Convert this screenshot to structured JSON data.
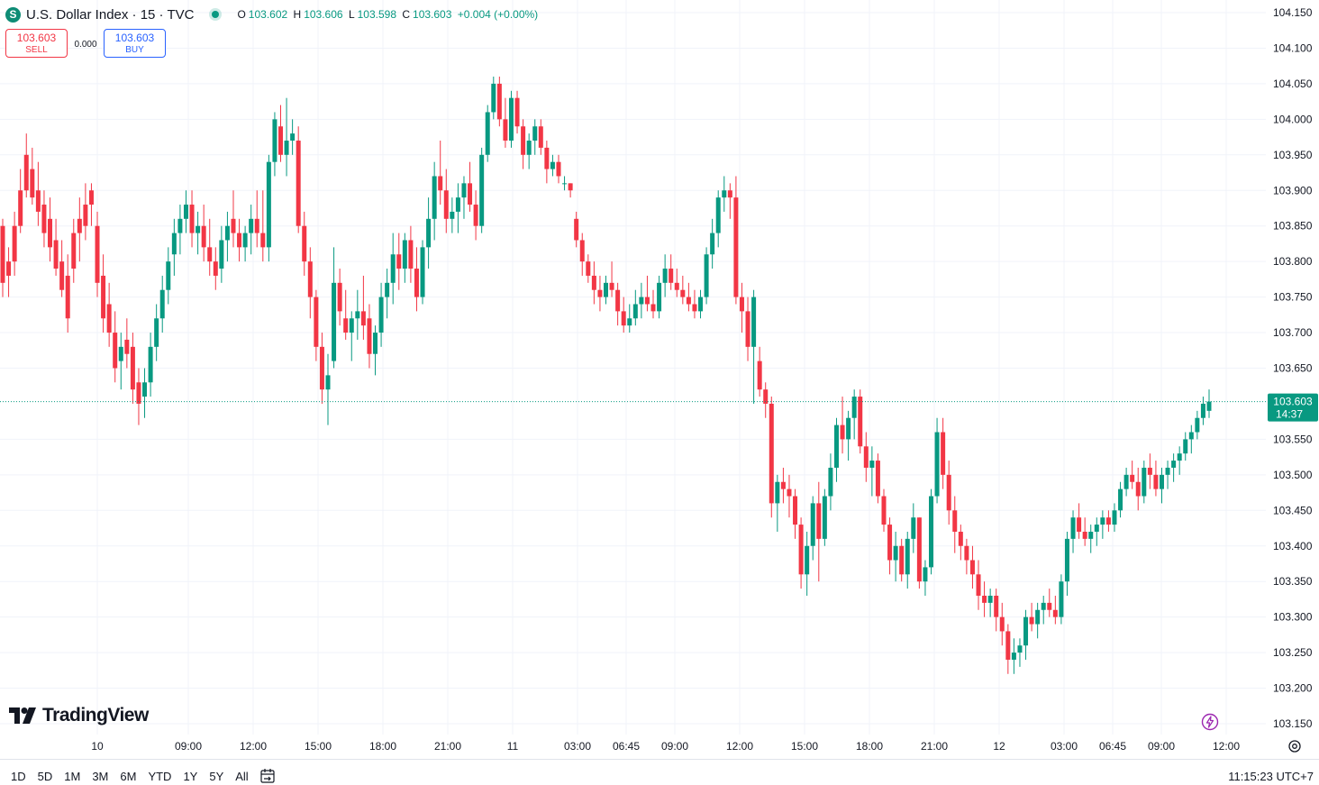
{
  "header": {
    "logo_letter": "S",
    "title": "U.S. Dollar Index · 15 · TVC",
    "ohlc": {
      "o_label": "O",
      "o": "103.602",
      "h_label": "H",
      "h": "103.606",
      "l_label": "L",
      "l": "103.598",
      "c_label": "C",
      "c": "103.603",
      "change": "+0.004 (+0.00%)"
    }
  },
  "trade": {
    "sell_price": "103.603",
    "sell_label": "SELL",
    "spread": "0.000",
    "buy_price": "103.603",
    "buy_label": "BUY"
  },
  "brand": {
    "name": "TradingView"
  },
  "price_tag": {
    "price": "103.603",
    "countdown": "14:37"
  },
  "bottom_bar": {
    "ranges": [
      "1D",
      "5D",
      "1M",
      "3M",
      "6M",
      "YTD",
      "1Y",
      "5Y",
      "All"
    ],
    "clock": "11:15:23 UTC+7"
  },
  "colors": {
    "up": "#089981",
    "down": "#f23645",
    "grid": "#f0f3fa",
    "accent": "#2962ff"
  },
  "chart_data": {
    "type": "candlestick",
    "y_ticks": [
      "104.150",
      "104.100",
      "104.050",
      "104.000",
      "103.950",
      "103.900",
      "103.850",
      "103.800",
      "103.750",
      "103.700",
      "103.650",
      "103.550",
      "103.500",
      "103.450",
      "103.400",
      "103.350",
      "103.300",
      "103.250",
      "103.200",
      "103.150"
    ],
    "ylim": [
      103.13,
      104.17
    ],
    "x_ticks": [
      "10",
      "09:00",
      "12:00",
      "15:00",
      "18:00",
      "21:00",
      "11",
      "03:00",
      "06:45",
      "09:00",
      "12:00",
      "15:00",
      "18:00",
      "21:00",
      "12",
      "03:00",
      "06:45",
      "09:00",
      "12:00"
    ],
    "last_price": 103.603,
    "candles": [
      [
        103.85,
        103.86,
        103.75,
        103.77
      ],
      [
        103.8,
        103.82,
        103.75,
        103.78
      ],
      [
        103.85,
        103.87,
        103.78,
        103.8
      ],
      [
        103.9,
        103.93,
        103.84,
        103.85
      ],
      [
        103.95,
        103.98,
        103.89,
        103.9
      ],
      [
        103.93,
        103.96,
        103.88,
        103.89
      ],
      [
        103.9,
        103.94,
        103.85,
        103.87
      ],
      [
        103.88,
        103.9,
        103.82,
        103.84
      ],
      [
        103.86,
        103.89,
        103.8,
        103.82
      ],
      [
        103.83,
        103.86,
        103.78,
        103.79
      ],
      [
        103.8,
        103.83,
        103.75,
        103.76
      ],
      [
        103.78,
        103.81,
        103.7,
        103.72
      ],
      [
        103.84,
        103.86,
        103.77,
        103.79
      ],
      [
        103.86,
        103.89,
        103.8,
        103.84
      ],
      [
        103.88,
        103.91,
        103.83,
        103.85
      ],
      [
        103.9,
        103.91,
        103.85,
        103.88
      ],
      [
        103.85,
        103.87,
        103.75,
        103.77
      ],
      [
        103.78,
        103.81,
        103.7,
        103.72
      ],
      [
        103.74,
        103.77,
        103.68,
        103.7
      ],
      [
        103.7,
        103.73,
        103.63,
        103.65
      ],
      [
        103.66,
        103.7,
        103.62,
        103.68
      ],
      [
        103.69,
        103.72,
        103.65,
        103.67
      ],
      [
        103.68,
        103.7,
        103.6,
        103.62
      ],
      [
        103.63,
        103.65,
        103.57,
        103.6
      ],
      [
        103.61,
        103.65,
        103.58,
        103.63
      ],
      [
        103.63,
        103.7,
        103.61,
        103.68
      ],
      [
        103.68,
        103.74,
        103.66,
        103.72
      ],
      [
        103.72,
        103.78,
        103.7,
        103.76
      ],
      [
        103.76,
        103.82,
        103.74,
        103.8
      ],
      [
        103.81,
        103.86,
        103.78,
        103.84
      ],
      [
        103.84,
        103.88,
        103.81,
        103.86
      ],
      [
        103.86,
        103.9,
        103.84,
        103.88
      ],
      [
        103.88,
        103.9,
        103.82,
        103.84
      ],
      [
        103.84,
        103.87,
        103.81,
        103.85
      ],
      [
        103.85,
        103.88,
        103.8,
        103.82
      ],
      [
        103.82,
        103.86,
        103.78,
        103.8
      ],
      [
        103.8,
        103.82,
        103.76,
        103.78
      ],
      [
        103.79,
        103.85,
        103.77,
        103.83
      ],
      [
        103.83,
        103.87,
        103.8,
        103.85
      ],
      [
        103.86,
        103.9,
        103.82,
        103.84
      ],
      [
        103.84,
        103.86,
        103.8,
        103.82
      ],
      [
        103.82,
        103.85,
        103.8,
        103.84
      ],
      [
        103.84,
        103.88,
        103.81,
        103.86
      ],
      [
        103.86,
        103.9,
        103.82,
        103.84
      ],
      [
        103.84,
        103.9,
        103.8,
        103.82
      ],
      [
        103.82,
        103.95,
        103.8,
        103.94
      ],
      [
        103.94,
        104.01,
        103.92,
        104.0
      ],
      [
        103.99,
        104.02,
        103.94,
        103.95
      ],
      [
        103.95,
        104.03,
        103.92,
        103.97
      ],
      [
        103.97,
        104.0,
        103.95,
        103.98
      ],
      [
        103.97,
        103.99,
        103.84,
        103.85
      ],
      [
        103.85,
        103.87,
        103.78,
        103.8
      ],
      [
        103.8,
        103.82,
        103.72,
        103.75
      ],
      [
        103.75,
        103.76,
        103.66,
        103.68
      ],
      [
        103.68,
        103.7,
        103.6,
        103.62
      ],
      [
        103.62,
        103.67,
        103.57,
        103.64
      ],
      [
        103.66,
        103.82,
        103.65,
        103.77
      ],
      [
        103.77,
        103.79,
        103.71,
        103.73
      ],
      [
        103.72,
        103.76,
        103.69,
        103.7
      ],
      [
        103.7,
        103.73,
        103.66,
        103.72
      ],
      [
        103.72,
        103.76,
        103.69,
        103.73
      ],
      [
        103.73,
        103.78,
        103.69,
        103.71
      ],
      [
        103.72,
        103.74,
        103.65,
        103.67
      ],
      [
        103.67,
        103.71,
        103.64,
        103.7
      ],
      [
        103.7,
        103.77,
        103.68,
        103.75
      ],
      [
        103.75,
        103.79,
        103.72,
        103.77
      ],
      [
        103.77,
        103.84,
        103.74,
        103.81
      ],
      [
        103.81,
        103.84,
        103.76,
        103.79
      ],
      [
        103.79,
        103.84,
        103.77,
        103.83
      ],
      [
        103.83,
        103.85,
        103.77,
        103.79
      ],
      [
        103.79,
        103.82,
        103.73,
        103.75
      ],
      [
        103.75,
        103.83,
        103.74,
        103.82
      ],
      [
        103.82,
        103.89,
        103.79,
        103.86
      ],
      [
        103.86,
        103.94,
        103.83,
        103.92
      ],
      [
        103.92,
        103.97,
        103.88,
        103.9
      ],
      [
        103.9,
        103.93,
        103.84,
        103.86
      ],
      [
        103.86,
        103.89,
        103.84,
        103.87
      ],
      [
        103.87,
        103.91,
        103.84,
        103.89
      ],
      [
        103.89,
        103.92,
        103.86,
        103.91
      ],
      [
        103.91,
        103.94,
        103.87,
        103.88
      ],
      [
        103.88,
        103.9,
        103.83,
        103.85
      ],
      [
        103.85,
        103.96,
        103.84,
        103.95
      ],
      [
        103.95,
        104.02,
        103.94,
        104.01
      ],
      [
        104.01,
        104.06,
        104.0,
        104.05
      ],
      [
        104.05,
        104.06,
        103.99,
        104.0
      ],
      [
        104.0,
        104.03,
        103.96,
        103.97
      ],
      [
        103.97,
        104.04,
        103.96,
        104.03
      ],
      [
        104.03,
        104.04,
        103.98,
        103.99
      ],
      [
        103.99,
        104.0,
        103.93,
        103.95
      ],
      [
        103.95,
        103.98,
        103.93,
        103.97
      ],
      [
        103.97,
        104.0,
        103.95,
        103.99
      ],
      [
        103.99,
        104.0,
        103.95,
        103.96
      ],
      [
        103.96,
        103.97,
        103.91,
        103.93
      ],
      [
        103.93,
        103.95,
        103.92,
        103.94
      ],
      [
        103.94,
        103.95,
        103.91,
        103.92
      ],
      [
        103.91,
        103.92,
        103.9,
        103.91
      ],
      [
        103.91,
        103.91,
        103.89,
        103.9
      ],
      [
        103.86,
        103.87,
        103.82,
        103.83
      ],
      [
        103.83,
        103.84,
        103.78,
        103.8
      ],
      [
        103.8,
        103.81,
        103.77,
        103.78
      ],
      [
        103.78,
        103.8,
        103.74,
        103.76
      ],
      [
        103.76,
        103.78,
        103.73,
        103.75
      ],
      [
        103.75,
        103.78,
        103.74,
        103.77
      ],
      [
        103.77,
        103.8,
        103.75,
        103.76
      ],
      [
        103.76,
        103.77,
        103.71,
        103.73
      ],
      [
        103.73,
        103.75,
        103.7,
        103.71
      ],
      [
        103.71,
        103.74,
        103.7,
        103.72
      ],
      [
        103.72,
        103.76,
        103.71,
        103.74
      ],
      [
        103.74,
        103.77,
        103.72,
        103.75
      ],
      [
        103.75,
        103.78,
        103.73,
        103.74
      ],
      [
        103.74,
        103.76,
        103.72,
        103.73
      ],
      [
        103.73,
        103.78,
        103.72,
        103.77
      ],
      [
        103.77,
        103.81,
        103.75,
        103.79
      ],
      [
        103.79,
        103.81,
        103.76,
        103.77
      ],
      [
        103.77,
        103.79,
        103.75,
        103.76
      ],
      [
        103.76,
        103.78,
        103.74,
        103.75
      ],
      [
        103.75,
        103.77,
        103.73,
        103.74
      ],
      [
        103.74,
        103.76,
        103.72,
        103.73
      ],
      [
        103.73,
        103.76,
        103.72,
        103.75
      ],
      [
        103.75,
        103.82,
        103.74,
        103.81
      ],
      [
        103.81,
        103.86,
        103.79,
        103.84
      ],
      [
        103.84,
        103.9,
        103.82,
        103.89
      ],
      [
        103.89,
        103.92,
        103.87,
        103.9
      ],
      [
        103.9,
        103.91,
        103.86,
        103.89
      ],
      [
        103.89,
        103.92,
        103.74,
        103.75
      ],
      [
        103.75,
        103.77,
        103.7,
        103.73
      ],
      [
        103.73,
        103.75,
        103.66,
        103.68
      ],
      [
        103.68,
        103.76,
        103.6,
        103.75
      ],
      [
        103.66,
        103.68,
        103.61,
        103.62
      ],
      [
        103.62,
        103.63,
        103.58,
        103.6
      ],
      [
        103.6,
        103.61,
        103.44,
        103.46
      ],
      [
        103.46,
        103.5,
        103.42,
        103.49
      ],
      [
        103.49,
        103.51,
        103.46,
        103.48
      ],
      [
        103.48,
        103.5,
        103.44,
        103.47
      ],
      [
        103.47,
        103.48,
        103.41,
        103.43
      ],
      [
        103.43,
        103.44,
        103.34,
        103.36
      ],
      [
        103.36,
        103.42,
        103.33,
        103.4
      ],
      [
        103.4,
        103.47,
        103.38,
        103.46
      ],
      [
        103.46,
        103.49,
        103.35,
        103.41
      ],
      [
        103.41,
        103.48,
        103.4,
        103.47
      ],
      [
        103.47,
        103.53,
        103.45,
        103.51
      ],
      [
        103.51,
        103.58,
        103.49,
        103.57
      ],
      [
        103.57,
        103.61,
        103.53,
        103.55
      ],
      [
        103.55,
        103.59,
        103.52,
        103.58
      ],
      [
        103.58,
        103.62,
        103.55,
        103.61
      ],
      [
        103.61,
        103.62,
        103.53,
        103.54
      ],
      [
        103.54,
        103.56,
        103.49,
        103.51
      ],
      [
        103.51,
        103.54,
        103.47,
        103.52
      ],
      [
        103.52,
        103.53,
        103.46,
        103.47
      ],
      [
        103.47,
        103.48,
        103.42,
        103.43
      ],
      [
        103.43,
        103.44,
        103.36,
        103.38
      ],
      [
        103.38,
        103.42,
        103.35,
        103.4
      ],
      [
        103.4,
        103.41,
        103.35,
        103.36
      ],
      [
        103.36,
        103.42,
        103.34,
        103.41
      ],
      [
        103.41,
        103.46,
        103.39,
        103.44
      ],
      [
        103.44,
        103.44,
        103.34,
        103.35
      ],
      [
        103.35,
        103.38,
        103.33,
        103.37
      ],
      [
        103.37,
        103.48,
        103.36,
        103.47
      ],
      [
        103.47,
        103.58,
        103.46,
        103.56
      ],
      [
        103.56,
        103.58,
        103.48,
        103.5
      ],
      [
        103.5,
        103.52,
        103.43,
        103.45
      ],
      [
        103.45,
        103.47,
        103.39,
        103.42
      ],
      [
        103.42,
        103.43,
        103.38,
        103.4
      ],
      [
        103.4,
        103.41,
        103.36,
        103.38
      ],
      [
        103.38,
        103.4,
        103.34,
        103.36
      ],
      [
        103.36,
        103.38,
        103.31,
        103.33
      ],
      [
        103.33,
        103.35,
        103.3,
        103.32
      ],
      [
        103.32,
        103.34,
        103.3,
        103.33
      ],
      [
        103.33,
        103.34,
        103.28,
        103.3
      ],
      [
        103.3,
        103.32,
        103.26,
        103.28
      ],
      [
        103.28,
        103.29,
        103.22,
        103.24
      ],
      [
        103.24,
        103.27,
        103.22,
        103.25
      ],
      [
        103.25,
        103.27,
        103.23,
        103.26
      ],
      [
        103.26,
        103.31,
        103.24,
        103.3
      ],
      [
        103.3,
        103.32,
        103.28,
        103.29
      ],
      [
        103.29,
        103.32,
        103.27,
        103.31
      ],
      [
        103.31,
        103.33,
        103.29,
        103.32
      ],
      [
        103.32,
        103.34,
        103.3,
        103.31
      ],
      [
        103.31,
        103.33,
        103.29,
        103.3
      ],
      [
        103.3,
        103.36,
        103.29,
        103.35
      ],
      [
        103.35,
        103.42,
        103.33,
        103.41
      ],
      [
        103.41,
        103.45,
        103.39,
        103.44
      ],
      [
        103.44,
        103.46,
        103.41,
        103.42
      ],
      [
        103.42,
        103.44,
        103.4,
        103.41
      ],
      [
        103.41,
        103.43,
        103.39,
        103.42
      ],
      [
        103.42,
        103.44,
        103.4,
        103.43
      ],
      [
        103.43,
        103.45,
        103.41,
        103.44
      ],
      [
        103.44,
        103.45,
        103.42,
        103.43
      ],
      [
        103.43,
        103.46,
        103.42,
        103.45
      ],
      [
        103.45,
        103.49,
        103.44,
        103.48
      ],
      [
        103.48,
        103.51,
        103.47,
        103.5
      ],
      [
        103.5,
        103.52,
        103.48,
        103.49
      ],
      [
        103.49,
        103.51,
        103.45,
        103.47
      ],
      [
        103.47,
        103.52,
        103.46,
        103.51
      ],
      [
        103.51,
        103.53,
        103.48,
        103.5
      ],
      [
        103.5,
        103.52,
        103.47,
        103.48
      ],
      [
        103.48,
        103.51,
        103.46,
        103.5
      ],
      [
        103.5,
        103.52,
        103.48,
        103.51
      ],
      [
        103.51,
        103.53,
        103.49,
        103.52
      ],
      [
        103.52,
        103.54,
        103.5,
        103.53
      ],
      [
        103.53,
        103.56,
        103.52,
        103.55
      ],
      [
        103.55,
        103.57,
        103.53,
        103.56
      ],
      [
        103.56,
        103.59,
        103.55,
        103.58
      ],
      [
        103.58,
        103.61,
        103.57,
        103.6
      ],
      [
        103.59,
        103.62,
        103.58,
        103.603
      ]
    ]
  }
}
